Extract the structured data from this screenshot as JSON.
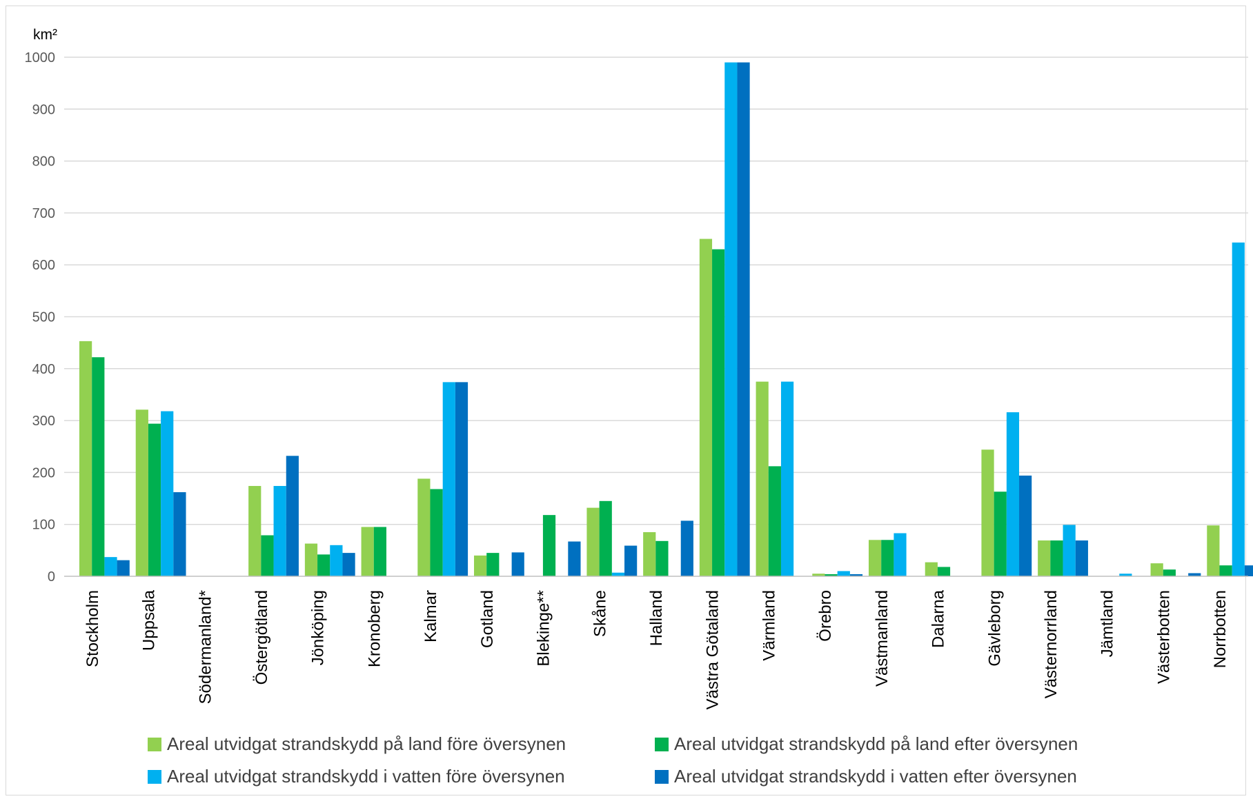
{
  "chart_data": {
    "type": "bar",
    "unit_label": "km²",
    "ylim": [
      0,
      1000
    ],
    "yticks": [
      0,
      100,
      200,
      300,
      400,
      500,
      600,
      700,
      800,
      900,
      1000
    ],
    "grid": true,
    "legend_position": "bottom",
    "categories": [
      "Stockholm",
      "Uppsala",
      "Södermanland*",
      "Östergötland",
      "Jönköping",
      "Kronoberg",
      "Kalmar",
      "Gotland",
      "Blekinge**",
      "Skåne",
      "Halland",
      "Västra Götaland",
      "Värmland",
      "Örebro",
      "Västmanland",
      "Dalarna",
      "Gävleborg",
      "Västernorrland",
      "Jämtland",
      "Västerbotten",
      "Norrbotten"
    ],
    "series": [
      {
        "name": "Areal utvidgat strandskydd på land före översynen",
        "color": "#92d050",
        "values": [
          453,
          321,
          0,
          174,
          63,
          95,
          188,
          40,
          0,
          132,
          85,
          650,
          375,
          5,
          70,
          27,
          244,
          69,
          0,
          25,
          98
        ]
      },
      {
        "name": "Areal utvidgat strandskydd på land efter översynen",
        "color": "#00b050",
        "values": [
          422,
          294,
          0,
          79,
          42,
          95,
          168,
          45,
          118,
          145,
          68,
          630,
          212,
          4,
          70,
          18,
          163,
          69,
          0,
          13,
          21
        ]
      },
      {
        "name": "Areal utvidgat strandskydd i vatten före översynen",
        "color": "#00b0f0",
        "values": [
          37,
          318,
          0,
          174,
          60,
          0,
          374,
          0,
          0,
          7,
          0,
          990,
          375,
          10,
          83,
          0,
          316,
          99,
          5,
          0,
          643
        ]
      },
      {
        "name": "Areal utvidgat strandskydd i vatten efter översynen",
        "color": "#0070c0",
        "values": [
          31,
          162,
          0,
          232,
          45,
          0,
          374,
          46,
          67,
          59,
          107,
          990,
          0,
          4,
          0,
          0,
          194,
          69,
          0,
          6,
          21
        ]
      }
    ]
  }
}
